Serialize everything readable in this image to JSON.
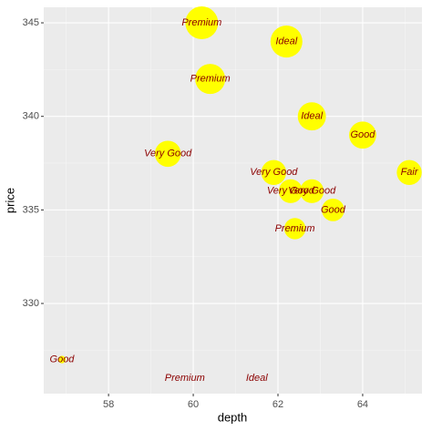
{
  "chart_data": {
    "type": "scatter",
    "x_label": "depth",
    "y_label": "price",
    "x": [
      61.5,
      59.8,
      56.9,
      62.4,
      63.3,
      62.8,
      62.3,
      61.9,
      65.1,
      59.4,
      64.0,
      62.8,
      60.4,
      62.2,
      60.2
    ],
    "values": [
      326,
      326,
      327,
      334,
      335,
      336,
      336,
      337,
      337,
      338,
      339,
      340,
      342,
      344,
      345
    ],
    "labels": [
      "Ideal",
      "Premium",
      "Good",
      "Premium",
      "Good",
      "Very Good",
      "Very Good",
      "Very Good",
      "Fair",
      "Very Good",
      "Good",
      "Ideal",
      "Premium",
      "Ideal",
      "Premium"
    ],
    "color": "#ffff00",
    "label_color": "#8b0000",
    "xlim": [
      56.47,
      65.4
    ],
    "ylim": [
      325.18,
      345.83
    ],
    "xticks": [
      58,
      60,
      62,
      64
    ],
    "yticks": [
      330,
      335,
      340,
      345
    ],
    "x_minor_grid": [
      57,
      59,
      61,
      63,
      65
    ],
    "y_minor_grid": [
      327.5,
      332.5,
      337.5,
      342.5
    ],
    "grid": true
  }
}
